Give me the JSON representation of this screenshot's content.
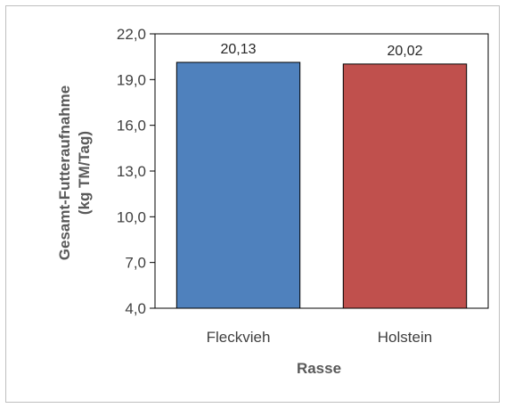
{
  "chart_data": {
    "type": "bar",
    "categories": [
      "Fleckvieh",
      "Holstein"
    ],
    "values": [
      20.13,
      20.02
    ],
    "data_labels": [
      "20,13",
      "20,02"
    ],
    "colors": [
      "#4f81bd",
      "#c0504d"
    ],
    "ylim": [
      4.0,
      22.0
    ],
    "yticks": [
      4.0,
      7.0,
      10.0,
      13.0,
      16.0,
      19.0,
      22.0
    ],
    "ytick_labels": [
      "4,0",
      "7,0",
      "10,0",
      "13,0",
      "16,0",
      "19,0",
      "22,0"
    ],
    "xlabel": "Rasse",
    "ylabel_lines": [
      "Gesamt-Futteraufnahme",
      "(kg TM/Tag)"
    ],
    "grid": false,
    "legend": "none"
  }
}
